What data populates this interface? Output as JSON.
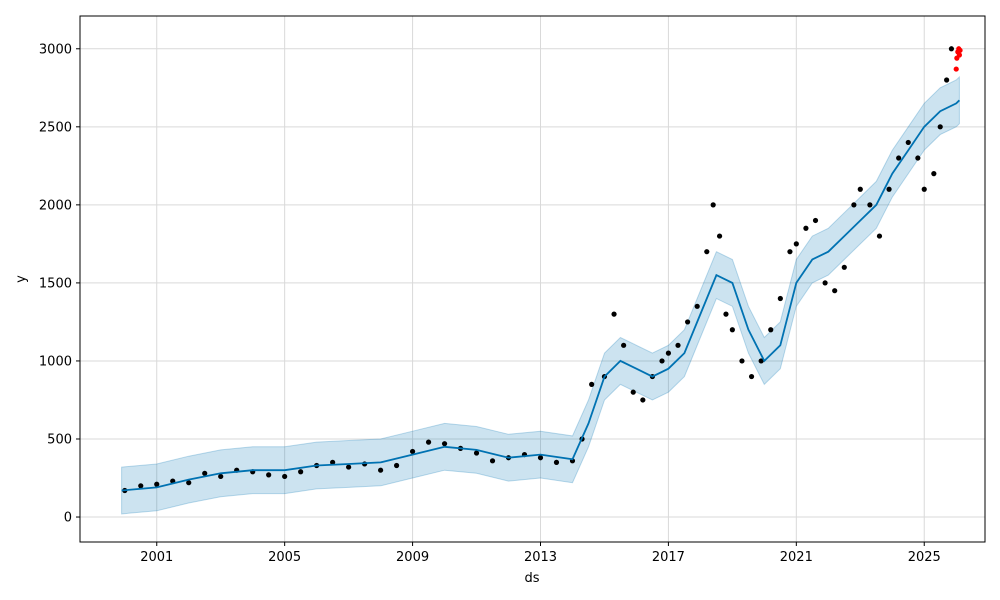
{
  "chart_data": {
    "type": "scatter",
    "xlabel": "ds",
    "ylabel": "y",
    "xlim": [
      1998.6,
      2026.9
    ],
    "ylim": [
      -160,
      3210
    ],
    "grid": true,
    "x_ticks": [
      2001,
      2005,
      2009,
      2013,
      2017,
      2021,
      2025
    ],
    "x_tick_labels": [
      "2001",
      "2005",
      "2009",
      "2013",
      "2017",
      "2021",
      "2025"
    ],
    "y_ticks": [
      0,
      500,
      1000,
      1500,
      2000,
      2500,
      3000
    ],
    "y_tick_labels": [
      "0",
      "500",
      "1000",
      "1500",
      "2000",
      "2500",
      "3000"
    ],
    "colors": {
      "observed": "#000000",
      "forecast_line": "#0072B2",
      "interval": "#0072B2",
      "holdout": "#ff0000",
      "grid": "#d9d9d9"
    },
    "series": [
      {
        "kind": "observed-points",
        "x": [
          2000.0,
          2000.5,
          2001.0,
          2001.5,
          2002.0,
          2002.5,
          2003.0,
          2003.5,
          2004.0,
          2004.5,
          2005.0,
          2005.5,
          2006.0,
          2006.5,
          2007.0,
          2007.5,
          2008.0,
          2008.5,
          2009.0,
          2009.5,
          2010.0,
          2010.5,
          2011.0,
          2011.5,
          2012.0,
          2012.5,
          2013.0,
          2013.5,
          2014.0,
          2014.3,
          2014.6,
          2015.0,
          2015.3,
          2015.6,
          2015.9,
          2016.2,
          2016.5,
          2016.8,
          2017.0,
          2017.3,
          2017.6,
          2017.9,
          2018.2,
          2018.4,
          2018.6,
          2018.8,
          2019.0,
          2019.3,
          2019.6,
          2019.9,
          2020.2,
          2020.5,
          2020.8,
          2021.0,
          2021.3,
          2021.6,
          2021.9,
          2022.2,
          2022.5,
          2022.8,
          2023.0,
          2023.3,
          2023.6,
          2023.9,
          2024.2,
          2024.5,
          2024.8,
          2025.0,
          2025.3,
          2025.5,
          2025.7,
          2025.85
        ],
        "y": [
          170,
          200,
          210,
          230,
          220,
          280,
          260,
          300,
          290,
          270,
          260,
          290,
          330,
          350,
          320,
          340,
          300,
          330,
          420,
          480,
          470,
          440,
          410,
          360,
          380,
          400,
          380,
          350,
          360,
          500,
          850,
          900,
          1300,
          1100,
          800,
          750,
          900,
          1000,
          1050,
          1100,
          1250,
          1350,
          1700,
          2000,
          1800,
          1300,
          1200,
          1000,
          900,
          1000,
          1200,
          1400,
          1700,
          1750,
          1850,
          1900,
          1500,
          1450,
          1600,
          2000,
          2100,
          2000,
          1800,
          2100,
          2300,
          2400,
          2300,
          2100,
          2200,
          2500,
          2800,
          3000
        ]
      },
      {
        "kind": "trend-line",
        "x": [
          1999.9,
          2001.0,
          2002.0,
          2003.0,
          2004.0,
          2005.0,
          2006.0,
          2007.0,
          2008.0,
          2009.0,
          2010.0,
          2011.0,
          2012.0,
          2013.0,
          2014.0,
          2014.5,
          2015.0,
          2015.5,
          2016.0,
          2016.5,
          2017.0,
          2017.5,
          2018.0,
          2018.5,
          2019.0,
          2019.5,
          2020.0,
          2020.5,
          2021.0,
          2021.5,
          2022.0,
          2022.5,
          2023.0,
          2023.5,
          2024.0,
          2024.5,
          2025.0,
          2025.5,
          2026.0,
          2026.1
        ],
        "y": [
          170,
          190,
          240,
          280,
          300,
          300,
          330,
          340,
          350,
          400,
          450,
          430,
          380,
          400,
          370,
          600,
          900,
          1000,
          950,
          900,
          950,
          1050,
          1300,
          1550,
          1500,
          1200,
          1000,
          1100,
          1500,
          1650,
          1700,
          1800,
          1900,
          2000,
          2200,
          2350,
          2500,
          2600,
          2650,
          2670
        ]
      },
      {
        "kind": "uncertainty-interval",
        "x": [
          1999.9,
          2001.0,
          2002.0,
          2003.0,
          2004.0,
          2005.0,
          2006.0,
          2007.0,
          2008.0,
          2009.0,
          2010.0,
          2011.0,
          2012.0,
          2013.0,
          2014.0,
          2014.5,
          2015.0,
          2015.5,
          2016.0,
          2016.5,
          2017.0,
          2017.5,
          2018.0,
          2018.5,
          2019.0,
          2019.5,
          2020.0,
          2020.5,
          2021.0,
          2021.5,
          2022.0,
          2022.5,
          2023.0,
          2023.5,
          2024.0,
          2024.5,
          2025.0,
          2025.5,
          2026.0,
          2026.1
        ],
        "lower": [
          20,
          40,
          90,
          130,
          150,
          150,
          180,
          190,
          200,
          250,
          300,
          280,
          230,
          250,
          220,
          450,
          750,
          850,
          800,
          750,
          800,
          900,
          1150,
          1400,
          1350,
          1050,
          850,
          950,
          1350,
          1500,
          1550,
          1650,
          1750,
          1850,
          2050,
          2200,
          2350,
          2450,
          2500,
          2520
        ],
        "upper": [
          320,
          340,
          390,
          430,
          450,
          450,
          480,
          490,
          500,
          550,
          600,
          580,
          530,
          550,
          520,
          750,
          1050,
          1150,
          1100,
          1050,
          1100,
          1200,
          1450,
          1700,
          1650,
          1350,
          1150,
          1250,
          1650,
          1800,
          1850,
          1950,
          2050,
          2150,
          2350,
          2500,
          2650,
          2750,
          2800,
          2820
        ]
      },
      {
        "kind": "holdout-points",
        "x": [
          2026.0,
          2026.02,
          2026.05,
          2026.08,
          2026.1,
          2026.12
        ],
        "y": [
          2870,
          2940,
          2980,
          3000,
          2960,
          2990
        ]
      }
    ]
  }
}
